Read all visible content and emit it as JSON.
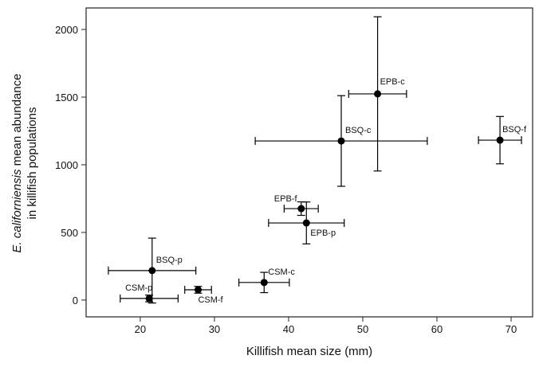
{
  "chart_data": {
    "type": "scatter",
    "xlabel": "Killifish mean size (mm)",
    "ylabel": {
      "italic": "E. californiensis",
      "rest": " mean abundance",
      "line2": "in killifish populations"
    },
    "xlim": [
      12.7,
      72.9
    ],
    "xticks": [
      20,
      30,
      40,
      50,
      60,
      70
    ],
    "ylim": [
      -124,
      2159
    ],
    "yticks": [
      0,
      500,
      1000,
      1500,
      2000
    ],
    "color": "#000000",
    "series": [
      {
        "labels": [
          "BSQ-p",
          "CSM-p",
          "CSM-f",
          "CSM-c",
          "EPB-p",
          "EPB-f",
          "BSQ-c",
          "EPB-c",
          "BSQ-f"
        ],
        "x": [
          21.6,
          21.2,
          27.8,
          36.7,
          42.4,
          41.7,
          47.1,
          52.0,
          68.5
        ],
        "values": [
          218,
          12,
          76,
          130,
          570,
          676,
          1176,
          1524,
          1182
        ],
        "xerr": [
          5.9,
          3.9,
          1.8,
          3.4,
          5.1,
          2.3,
          11.6,
          3.9,
          2.9
        ],
        "yerr": [
          240,
          25,
          25,
          75,
          155,
          50,
          335,
          570,
          175
        ]
      }
    ]
  }
}
